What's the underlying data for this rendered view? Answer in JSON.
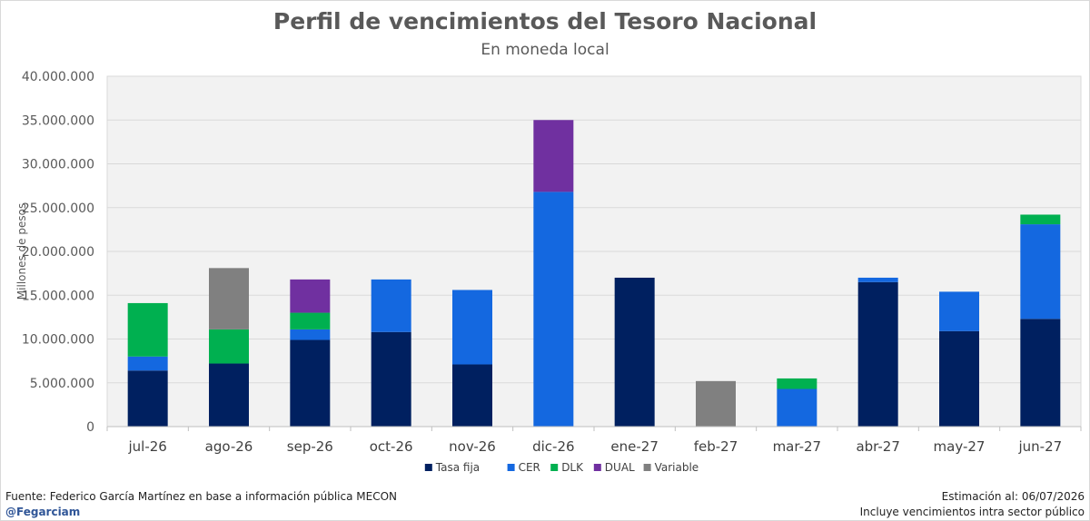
{
  "chart_data": {
    "type": "bar",
    "stacked": true,
    "title": "Perfil de vencimientos del Tesoro Nacional",
    "subtitle": "En moneda local",
    "ylabel": "Millones de pesos",
    "xlabel": "",
    "ylim": [
      0,
      40000000
    ],
    "yticks": [
      0,
      5000000,
      10000000,
      15000000,
      20000000,
      25000000,
      30000000,
      35000000,
      40000000
    ],
    "ytick_labels": [
      "0",
      "5.000.000",
      "10.000.000",
      "15.000.000",
      "20.000.000",
      "25.000.000",
      "30.000.000",
      "35.000.000",
      "40.000.000"
    ],
    "grid": true,
    "legend_position": "bottom",
    "categories": [
      "jul-26",
      "ago-26",
      "sep-26",
      "oct-26",
      "nov-26",
      "dic-26",
      "ene-27",
      "feb-27",
      "mar-27",
      "abr-27",
      "may-27",
      "jun-27"
    ],
    "series": [
      {
        "name": "Tasa fija",
        "color": "#002060",
        "values": [
          6400000,
          7200000,
          9900000,
          10800000,
          7100000,
          0,
          17000000,
          0,
          0,
          16500000,
          10900000,
          12300000
        ]
      },
      {
        "name": "CER",
        "color": "#1468e0",
        "values": [
          1600000,
          0,
          1200000,
          6000000,
          8500000,
          26800000,
          0,
          0,
          4300000,
          500000,
          4500000,
          10800000
        ]
      },
      {
        "name": "DLK",
        "color": "#00b050",
        "values": [
          6100000,
          3900000,
          1900000,
          0,
          0,
          0,
          0,
          0,
          1200000,
          0,
          0,
          1100000
        ]
      },
      {
        "name": "DUAL",
        "color": "#7030a0",
        "values": [
          0,
          0,
          3800000,
          0,
          0,
          8200000,
          0,
          0,
          0,
          0,
          0,
          0
        ]
      },
      {
        "name": "Variable",
        "color": "#808080",
        "values": [
          0,
          7000000,
          0,
          0,
          0,
          0,
          0,
          5200000,
          0,
          0,
          0,
          0
        ]
      }
    ]
  },
  "footer": {
    "source": "Fuente: Federico García Martínez en base a información pública MECON",
    "handle": "@Fegarciam",
    "estimate": "Estimación al: 06/07/2026",
    "note": "Incluye vencimientos intra sector público"
  }
}
